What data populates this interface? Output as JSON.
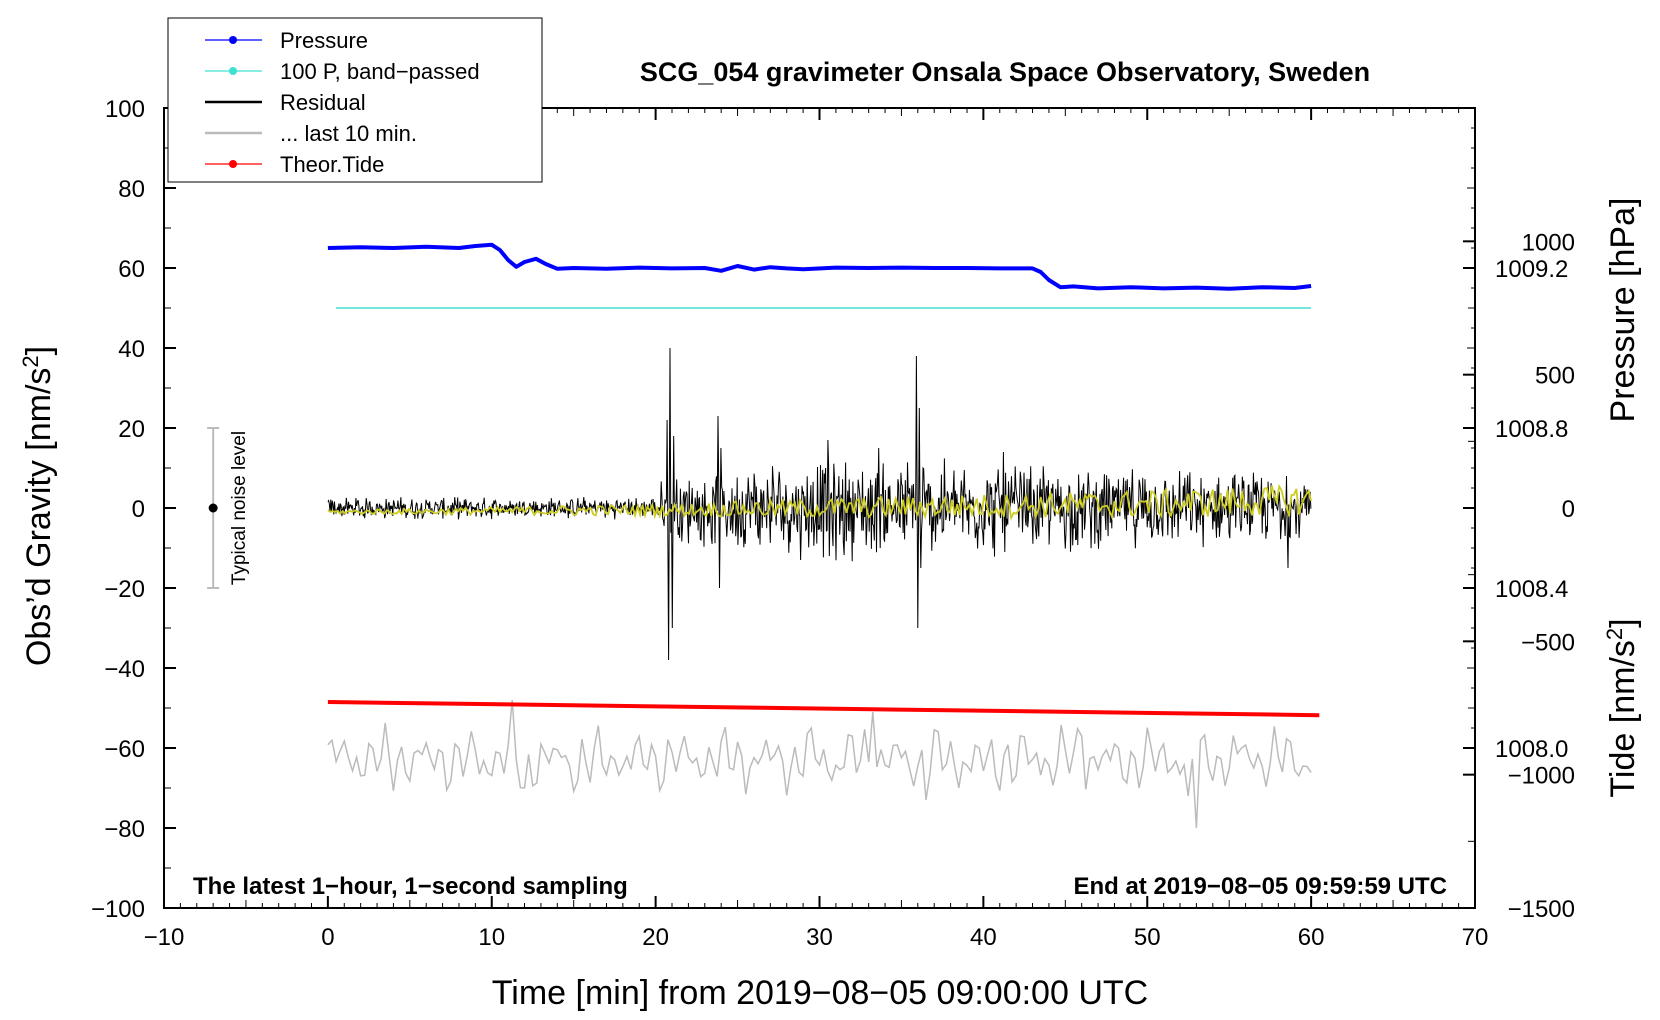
{
  "chart_data": {
    "type": "line",
    "title": "SCG_054 gravimeter Onsala Space Observatory, Sweden",
    "xlabel": "Time [min] from 2019−08−05 09:00:00 UTC",
    "ylabel_left": "Obs’d Gravity [nm/s2]",
    "ylabel_right_pressure": "Pressure [hPa]",
    "ylabel_right_tide": "Tide [nm/s2]",
    "xlim": [
      -10,
      70
    ],
    "ylim": [
      -100,
      100
    ],
    "pressure_lim": [
      1007.6,
      1009.6
    ],
    "tide_lim": [
      -1500,
      1500
    ],
    "x_ticks": [
      "−10",
      "0",
      "10",
      "20",
      "30",
      "40",
      "50",
      "60",
      "70"
    ],
    "x_tick_values": [
      -10,
      0,
      10,
      20,
      30,
      40,
      50,
      60,
      70
    ],
    "y_ticks": [
      "100",
      "80",
      "60",
      "40",
      "20",
      "0",
      "−20",
      "−40",
      "−60",
      "−80",
      "−100"
    ],
    "y_tick_values": [
      100,
      80,
      60,
      40,
      20,
      0,
      -20,
      -40,
      -60,
      -80,
      -100
    ],
    "pressure_ticks": [
      "1009.2",
      "1008.8",
      "1008.4",
      "1008.0"
    ],
    "pressure_tick_values": [
      1009.2,
      1008.8,
      1008.4,
      1008.0
    ],
    "tide_ticks": [
      "1000",
      "500",
      "0",
      "−500",
      "−1000",
      "−1500"
    ],
    "tide_tick_values": [
      1000,
      500,
      0,
      -500,
      -1000,
      -1500
    ],
    "legend": [
      {
        "label": "Pressure",
        "color": "#0000ff",
        "marker": true,
        "width": 1.2
      },
      {
        "label": "100 P, band−passed",
        "color": "#40e0d0",
        "marker": true,
        "width": 1.2
      },
      {
        "label": "Residual",
        "color": "#000000",
        "marker": false,
        "width": 2.5
      },
      {
        "label": "... last 10 min.",
        "color": "#bbbbbb",
        "marker": false,
        "width": 2.5
      },
      {
        "label": "Theor.Tide",
        "color": "#ff0000",
        "marker": true,
        "width": 1.2
      }
    ],
    "footnote_left": "The latest 1−hour, 1−second sampling",
    "footnote_right": "End at 2019−08−05 09:59:59 UTC",
    "noise_label": "Typical noise level",
    "noise_bar": {
      "x": -7,
      "center": 0,
      "low": -20,
      "high": 20
    },
    "series": [
      {
        "name": "Pressure",
        "color": "#0000ff",
        "unit": "nm/s2",
        "x": [
          0,
          2,
          4,
          6,
          8,
          9,
          10,
          10.5,
          11,
          11.5,
          12,
          12.7,
          13.3,
          14,
          15,
          17,
          19,
          21,
          23,
          24,
          25,
          26,
          27,
          28,
          29,
          31,
          33,
          35,
          37,
          39,
          41,
          43,
          43.5,
          44,
          44.7,
          45.5,
          47,
          49,
          51,
          53,
          55,
          57,
          59,
          60
        ],
        "values": [
          65,
          65.2,
          65,
          65.3,
          65,
          65.5,
          65.8,
          64.5,
          62,
          60.3,
          61.5,
          62.3,
          61,
          59.8,
          60,
          59.8,
          60.1,
          59.9,
          60,
          59.3,
          60.5,
          59.6,
          60.2,
          59.9,
          59.7,
          60.1,
          60,
          60.1,
          60,
          60,
          59.9,
          59.9,
          59,
          57,
          55.2,
          55.4,
          54.9,
          55.2,
          54.9,
          55.1,
          54.8,
          55.2,
          55,
          55.5
        ]
      },
      {
        "name": "100 P, band−passed",
        "color": "#40e0d0",
        "unit": "nm/s2",
        "x": [
          0.5,
          60
        ],
        "values": [
          50,
          50
        ]
      },
      {
        "name": "Residual",
        "color": "#000000",
        "unit": "nm/s2",
        "x": [
          0,
          20,
          20.7,
          20.8,
          20.9,
          21.0,
          21.1,
          21.3,
          23.8,
          23.9,
          24.0,
          24.1,
          30.5,
          30.6,
          33.6,
          33.7,
          35.9,
          36.0,
          36.1,
          36.2,
          36.3,
          36.5,
          41.2,
          41.3,
          58.5,
          58.6,
          60
        ],
        "values": [
          0,
          0,
          22,
          -38,
          40,
          -30,
          18,
          0,
          23,
          -20,
          15,
          0,
          17,
          -12,
          15,
          -10,
          38,
          -30,
          25,
          -15,
          10,
          0,
          14,
          -11,
          8,
          -15,
          0
        ],
        "envelope_x": [
          0,
          20,
          20.5,
          30,
          40,
          50,
          60
        ],
        "envelope_amp": [
          2.5,
          2.5,
          8,
          12,
          11,
          9,
          8
        ]
      },
      {
        "name": "Residual smoothed",
        "color": "#cccc22",
        "unit": "nm/s2",
        "x": [
          0,
          20,
          30,
          40,
          50,
          60
        ],
        "values": [
          -1,
          -0.5,
          0,
          0.5,
          1,
          2
        ],
        "envelope_amp": [
          0.5,
          1.5,
          2.5,
          3,
          3.5,
          4
        ]
      },
      {
        "name": "... last 10 min.",
        "color": "#bbbbbb",
        "unit": "nm/s2",
        "center": -63,
        "x": [
          0,
          10.5,
          11.2,
          11.9,
          21.5,
          33.2,
          36.5,
          46,
          52.5,
          53.1,
          53.8,
          60
        ],
        "values": [
          -63,
          -63,
          -48,
          -70,
          -63,
          -51,
          -73,
          -57,
          -72,
          -80,
          -65,
          -63
        ]
      },
      {
        "name": "Theor.Tide",
        "color": "#ff0000",
        "unit": "nm/s2",
        "x": [
          0,
          60.5
        ],
        "values": [
          -48.5,
          -51.8
        ]
      }
    ]
  }
}
